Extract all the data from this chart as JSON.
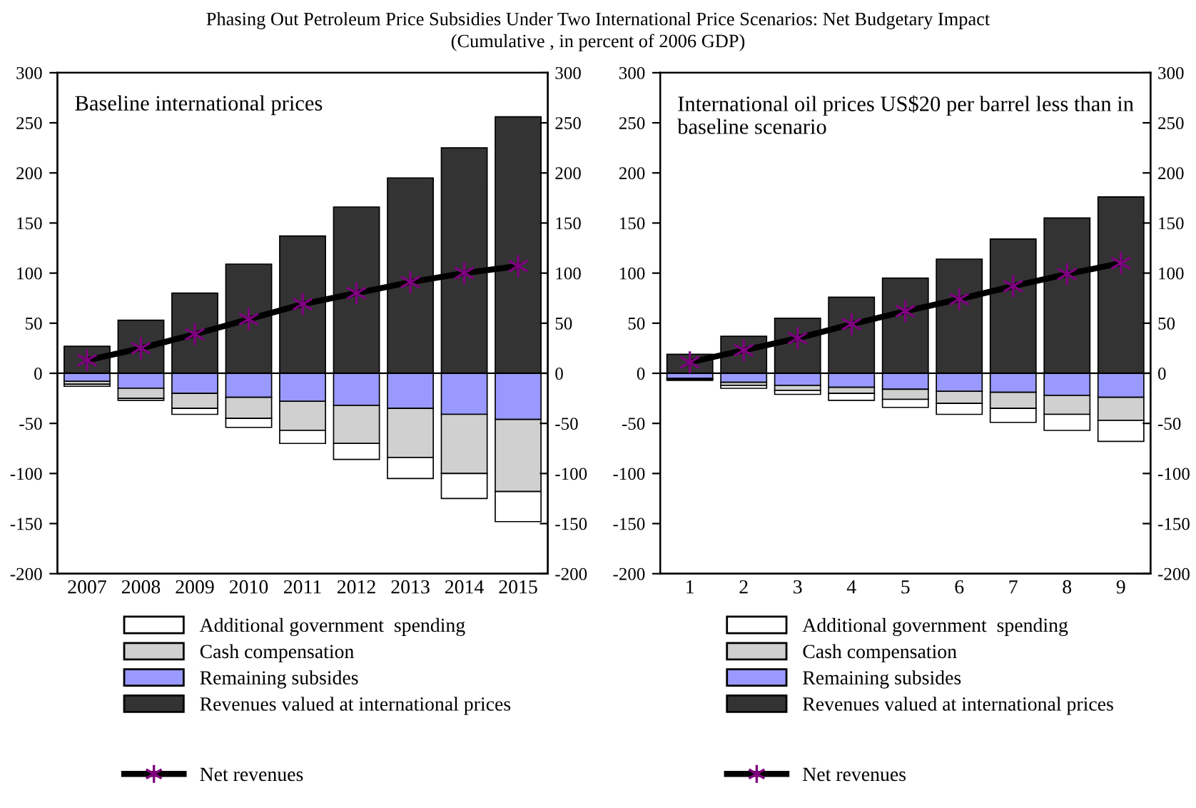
{
  "chart_data": [
    {
      "type": "bar",
      "title": "Phasing Out Petroleum Price Subsidies Under Two International Price Scenarios: Net Budgetary Impact",
      "subtitle": "(Cumulative , in percent of 2006 GDP)",
      "annotations": [
        "Baseline international prices"
      ],
      "stacked": true,
      "legend": "bottom",
      "marker": "cross",
      "categories": [
        "2007",
        "2008",
        "2009",
        "2010",
        "2011",
        "2012",
        "2013",
        "2014",
        "2015"
      ],
      "series": [
        {
          "name": "Revenues valued at international prices",
          "color": "#333333",
          "values": [
            27,
            53,
            80,
            109,
            137,
            166,
            195,
            225,
            256
          ]
        },
        {
          "name": "Remaining subsides",
          "color": "#9999ff",
          "values": [
            -8,
            -15,
            -20,
            -24,
            -28,
            -32,
            -35,
            -41,
            -46
          ]
        },
        {
          "name": "Cash compensation",
          "color": "#d0d0d0",
          "values": [
            -3,
            -10,
            -15,
            -21,
            -29,
            -38,
            -49,
            -59,
            -72
          ]
        },
        {
          "name": "Additional government  spending",
          "color": "#ffffff",
          "values": [
            -2,
            -2,
            -6,
            -9,
            -13,
            -16,
            -21,
            -25,
            -30
          ]
        },
        {
          "name": "Net revenues",
          "type": "line",
          "color": "#000000",
          "values": [
            13,
            25,
            39,
            54,
            69,
            80,
            91,
            100,
            107
          ]
        }
      ],
      "ylim": [
        -200,
        300
      ],
      "yticks": [
        -200,
        -150,
        -100,
        -50,
        0,
        50,
        100,
        150,
        200,
        250,
        300
      ],
      "y2lim": [
        -200,
        300
      ],
      "y2ticks": [
        -200,
        -150,
        -100,
        -50,
        0,
        50,
        100,
        150,
        200,
        250,
        300
      ]
    },
    {
      "type": "bar",
      "annotations": [
        "International oil prices US$20 per barrel less than in baseline scenario"
      ],
      "stacked": true,
      "legend": "bottom",
      "marker": "cross",
      "categories": [
        "1",
        "2",
        "3",
        "4",
        "5",
        "6",
        "7",
        "8",
        "9"
      ],
      "series": [
        {
          "name": "Revenues valued at international prices",
          "color": "#333333",
          "values": [
            19,
            37,
            55,
            76,
            95,
            114,
            134,
            155,
            176
          ]
        },
        {
          "name": "Remaining subsides",
          "color": "#9999ff",
          "values": [
            -5,
            -9,
            -12,
            -14,
            -16,
            -18,
            -19,
            -22,
            -24
          ]
        },
        {
          "name": "Cash compensation",
          "color": "#d0d0d0",
          "values": [
            -1,
            -3,
            -5,
            -6,
            -10,
            -12,
            -16,
            -19,
            -23
          ]
        },
        {
          "name": "Additional government  spending",
          "color": "#ffffff",
          "values": [
            -1,
            -3,
            -4,
            -7,
            -8,
            -11,
            -14,
            -16,
            -21
          ]
        },
        {
          "name": "Net revenues",
          "type": "line",
          "color": "#000000",
          "values": [
            11,
            23,
            35,
            49,
            62,
            74,
            87,
            99,
            110
          ]
        }
      ],
      "ylim": [
        -200,
        300
      ],
      "yticks": [
        -200,
        -150,
        -100,
        -50,
        0,
        50,
        100,
        150,
        200,
        250,
        300
      ],
      "y2lim": [
        -200,
        300
      ],
      "y2ticks": [
        -200,
        -150,
        -100,
        -50,
        0,
        50,
        100,
        150,
        200,
        250,
        300
      ]
    }
  ]
}
